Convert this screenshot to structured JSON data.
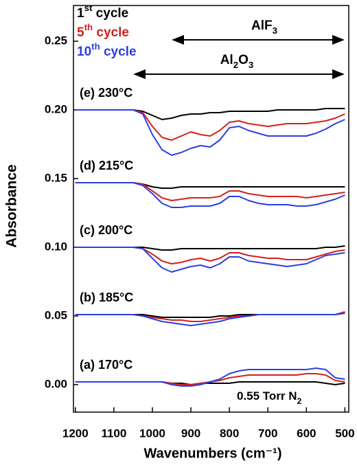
{
  "chart_data": {
    "type": "line",
    "y_label": "Absorbance",
    "x_label": "Wavenumbers (cm⁻¹)",
    "xlim": [
      1205,
      490
    ],
    "ylim": [
      -0.02,
      0.276
    ],
    "xticks": [
      1200,
      1100,
      1000,
      900,
      800,
      700,
      600,
      500
    ],
    "yticks": [
      {
        "value": 0,
        "label": "0.00"
      },
      {
        "value": 0.05,
        "label": "0.05"
      },
      {
        "value": 0.1,
        "label": "0.10"
      },
      {
        "value": 0.15,
        "label": "0.15"
      },
      {
        "value": 0.2,
        "label": "0.20"
      },
      {
        "value": 0.25,
        "label": "0.25"
      }
    ],
    "series": [
      {
        "name": "1st cycle",
        "color": "#000000"
      },
      {
        "name": "5th cycle",
        "color": "#d3211b"
      },
      {
        "name": "10th cycle",
        "color": "#2a3fe3"
      }
    ],
    "annotations": [
      "AlF3",
      "Al2O3",
      "0.55 Torr N2"
    ],
    "x": [
      1200,
      1175,
      1150,
      1125,
      1100,
      1075,
      1050,
      1025,
      1000,
      975,
      950,
      925,
      900,
      875,
      850,
      825,
      800,
      775,
      750,
      725,
      700,
      675,
      650,
      625,
      600,
      575,
      550,
      525,
      500
    ],
    "panels": [
      {
        "label": "(e) 230°C",
        "values": [
          [
            0.2,
            0.2,
            0.2,
            0.2,
            0.2,
            0.2,
            0.2,
            0.199,
            0.196,
            0.193,
            0.194,
            0.196,
            0.197,
            0.197,
            0.198,
            0.198,
            0.199,
            0.199,
            0.199,
            0.199,
            0.199,
            0.2,
            0.2,
            0.2,
            0.2,
            0.2,
            0.201,
            0.201,
            0.201
          ],
          [
            0.2,
            0.2,
            0.2,
            0.2,
            0.2,
            0.2,
            0.2,
            0.198,
            0.188,
            0.18,
            0.178,
            0.181,
            0.184,
            0.182,
            0.181,
            0.185,
            0.191,
            0.192,
            0.19,
            0.189,
            0.188,
            0.189,
            0.19,
            0.19,
            0.19,
            0.191,
            0.192,
            0.194,
            0.197
          ],
          [
            0.2,
            0.2,
            0.2,
            0.2,
            0.2,
            0.2,
            0.2,
            0.197,
            0.182,
            0.171,
            0.167,
            0.169,
            0.172,
            0.174,
            0.173,
            0.178,
            0.187,
            0.188,
            0.185,
            0.183,
            0.181,
            0.181,
            0.181,
            0.181,
            0.181,
            0.183,
            0.186,
            0.19,
            0.193
          ]
        ]
      },
      {
        "label": "(d) 215°C",
        "values": [
          [
            0.147,
            0.147,
            0.147,
            0.147,
            0.147,
            0.147,
            0.147,
            0.146,
            0.144,
            0.143,
            0.143,
            0.144,
            0.144,
            0.144,
            0.144,
            0.144,
            0.144,
            0.144,
            0.144,
            0.144,
            0.144,
            0.144,
            0.144,
            0.144,
            0.144,
            0.144,
            0.144,
            0.144,
            0.144
          ],
          [
            0.147,
            0.147,
            0.147,
            0.147,
            0.147,
            0.147,
            0.147,
            0.146,
            0.141,
            0.136,
            0.134,
            0.135,
            0.136,
            0.136,
            0.136,
            0.137,
            0.141,
            0.141,
            0.139,
            0.138,
            0.137,
            0.137,
            0.137,
            0.137,
            0.136,
            0.137,
            0.138,
            0.139,
            0.14
          ],
          [
            0.147,
            0.147,
            0.147,
            0.147,
            0.147,
            0.147,
            0.147,
            0.145,
            0.139,
            0.132,
            0.129,
            0.129,
            0.13,
            0.13,
            0.13,
            0.132,
            0.137,
            0.137,
            0.134,
            0.132,
            0.131,
            0.131,
            0.131,
            0.13,
            0.13,
            0.131,
            0.133,
            0.135,
            0.138
          ]
        ]
      },
      {
        "label": "(c) 200°C",
        "values": [
          [
            0.1,
            0.1,
            0.1,
            0.1,
            0.1,
            0.1,
            0.1,
            0.1,
            0.099,
            0.098,
            0.098,
            0.099,
            0.099,
            0.099,
            0.099,
            0.099,
            0.099,
            0.099,
            0.099,
            0.099,
            0.099,
            0.099,
            0.099,
            0.099,
            0.099,
            0.099,
            0.1,
            0.1,
            0.101
          ],
          [
            0.1,
            0.1,
            0.1,
            0.1,
            0.1,
            0.1,
            0.1,
            0.099,
            0.095,
            0.09,
            0.088,
            0.089,
            0.091,
            0.092,
            0.09,
            0.092,
            0.096,
            0.096,
            0.094,
            0.093,
            0.092,
            0.092,
            0.091,
            0.091,
            0.091,
            0.093,
            0.095,
            0.097,
            0.098
          ],
          [
            0.1,
            0.1,
            0.1,
            0.1,
            0.1,
            0.1,
            0.1,
            0.099,
            0.092,
            0.085,
            0.082,
            0.084,
            0.086,
            0.087,
            0.085,
            0.088,
            0.093,
            0.093,
            0.09,
            0.089,
            0.088,
            0.087,
            0.086,
            0.087,
            0.088,
            0.091,
            0.094,
            0.095,
            0.096
          ]
        ]
      },
      {
        "label": "(b) 185°C",
        "values": [
          [
            0.051,
            0.051,
            0.051,
            0.051,
            0.051,
            0.051,
            0.051,
            0.051,
            0.05,
            0.049,
            0.049,
            0.049,
            0.049,
            0.049,
            0.049,
            0.05,
            0.05,
            0.051,
            0.051,
            0.051,
            0.051,
            0.051,
            0.051,
            0.051,
            0.051,
            0.051,
            0.051,
            0.051,
            0.052
          ],
          [
            0.051,
            0.051,
            0.051,
            0.051,
            0.051,
            0.051,
            0.051,
            0.05,
            0.049,
            0.048,
            0.047,
            0.047,
            0.046,
            0.046,
            0.047,
            0.048,
            0.049,
            0.05,
            0.05,
            0.051,
            0.051,
            0.051,
            0.051,
            0.051,
            0.051,
            0.051,
            0.051,
            0.051,
            0.053
          ],
          [
            0.051,
            0.051,
            0.051,
            0.051,
            0.051,
            0.051,
            0.051,
            0.05,
            0.048,
            0.046,
            0.045,
            0.044,
            0.043,
            0.044,
            0.045,
            0.046,
            0.048,
            0.049,
            0.05,
            0.051,
            0.051,
            0.051,
            0.051,
            0.051,
            0.051,
            0.051,
            0.051,
            0.051,
            0.052
          ]
        ]
      },
      {
        "label": "(a) 170°C",
        "values": [
          [
            0.002,
            0.002,
            0.002,
            0.002,
            0.002,
            0.002,
            0.002,
            0.002,
            0.002,
            0.002,
            0.001,
            0.001,
            0,
            0.001,
            0.001,
            0.001,
            0.001,
            0.002,
            0.002,
            0.002,
            0.002,
            0.002,
            0.002,
            0.002,
            0.002,
            0.002,
            0.001,
            0,
            0.001
          ],
          [
            0.002,
            0.002,
            0.002,
            0.002,
            0.002,
            0.002,
            0.002,
            0.002,
            0.002,
            0.002,
            0.001,
            0,
            0,
            0.001,
            0.002,
            0.003,
            0.005,
            0.006,
            0.007,
            0.007,
            0.007,
            0.007,
            0.007,
            0.007,
            0.008,
            0.008,
            0.007,
            0.003,
            0.002
          ],
          [
            0.002,
            0.002,
            0.002,
            0.002,
            0.002,
            0.002,
            0.002,
            0.002,
            0.002,
            0.002,
            0,
            -0.001,
            -0.001,
            0,
            0.002,
            0.004,
            0.008,
            0.01,
            0.011,
            0.011,
            0.011,
            0.011,
            0.011,
            0.011,
            0.011,
            0.012,
            0.011,
            0.005,
            0.004
          ]
        ]
      }
    ]
  }
}
